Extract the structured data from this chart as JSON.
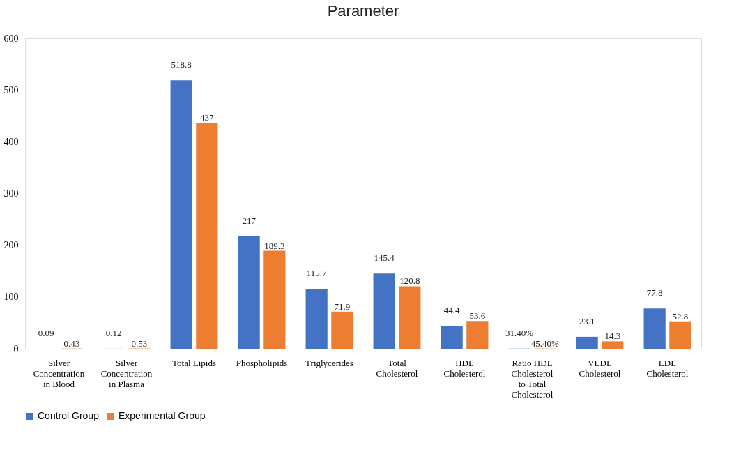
{
  "chart_data": {
    "type": "bar",
    "title": "Parameter",
    "categories": [
      "Silver Concentration in Blood",
      "Silver Concentration in Plasma",
      "Total Lipids",
      "Phospholipids",
      "Triglycerides",
      "Total Cholesterol",
      "HDL Cholesterol",
      "Ratio HDL Cholesterol to Total Cholesterol",
      "VLDL Cholesterol",
      "LDL Cholesterol"
    ],
    "series": [
      {
        "name": "Control Group",
        "color": "#4472c4",
        "values": [
          0.09,
          0.12,
          518.8,
          217,
          115.7,
          145.4,
          44.4,
          0.314,
          23.1,
          77.8
        ],
        "value_labels": [
          "0.09",
          "0.12",
          "518.8",
          "217",
          "115.7",
          "145.4",
          "44.4",
          "31.40%",
          "23.1",
          "77.8"
        ]
      },
      {
        "name": "Experimental Group",
        "color": "#ed7d31",
        "values": [
          0.43,
          0.53,
          437,
          189.3,
          71.9,
          120.8,
          53.6,
          0.454,
          14.3,
          52.8
        ],
        "value_labels": [
          "0.43",
          "0.53",
          "437",
          "189.3",
          "71.9",
          "120.8",
          "53.6",
          "45.40%",
          "14.3",
          "52.8"
        ]
      }
    ],
    "ylim": [
      0,
      600
    ],
    "yticks": [
      0,
      100,
      200,
      300,
      400,
      500,
      600
    ],
    "grid": false,
    "legend": "bottom"
  }
}
